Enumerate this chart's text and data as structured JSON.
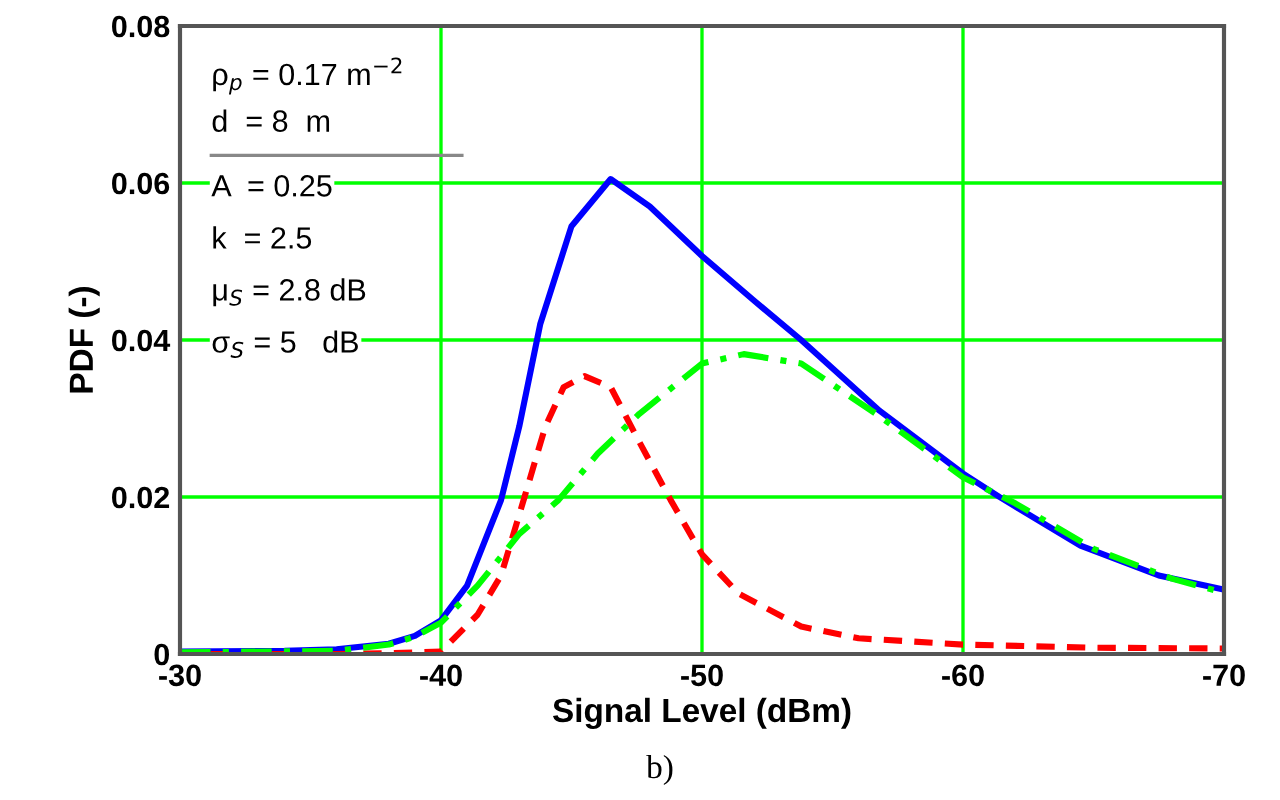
{
  "chart_data": {
    "type": "line",
    "xlabel": "Signal Level (dBm)",
    "ylabel": "PDF (-)",
    "xlim": [
      -30,
      -70
    ],
    "ylim": [
      0,
      0.08
    ],
    "xticks": [
      {
        "value": -30,
        "label": "-30"
      },
      {
        "value": -40,
        "label": "-40"
      },
      {
        "value": -50,
        "label": "-50"
      },
      {
        "value": -60,
        "label": "-60"
      },
      {
        "value": -70,
        "label": "-70"
      }
    ],
    "yticks": [
      0,
      0.02,
      0.04,
      0.06,
      0.08
    ],
    "grid": true,
    "annotations": [
      "ρ$_{p}$ = 0.17 m$^{−2}$",
      "d  = 8  m",
      "A  = 0.25",
      "k  = 2.5",
      "μ$_{S}$ = 2.8 dB",
      "σ$_{S}$ = 5   dB",
      "b)"
    ],
    "series": [
      {
        "color": "#0000ff",
        "line_style": "solid",
        "x": [
          -30,
          -34,
          -36,
          -38,
          -39,
          -40,
          -41,
          -42.3,
          -43,
          -43.8,
          -45,
          -46.5,
          -48,
          -50,
          -52,
          -53.8,
          -56.8,
          -60,
          -61.4,
          -64.5,
          -67.5,
          -70
        ],
        "values": [
          0.0003,
          0.0004,
          0.0006,
          0.0013,
          0.0023,
          0.0043,
          0.0087,
          0.0196,
          0.029,
          0.042,
          0.0545,
          0.0605,
          0.057,
          0.0507,
          0.045,
          0.04,
          0.031,
          0.023,
          0.02,
          0.0138,
          0.01,
          0.0082
        ]
      },
      {
        "color": "#ff0000",
        "line_style": "dashed",
        "x": [
          -30,
          -36,
          -38,
          -39,
          -40,
          -41.4,
          -42.3,
          -43.2,
          -44,
          -44.7,
          -45.5,
          -46.5,
          -47.6,
          -48.8,
          -50,
          -51.4,
          -53.8,
          -56,
          -60,
          -65,
          -70
        ],
        "values": [
          0,
          0,
          0.0001,
          0.0002,
          0.0003,
          0.005,
          0.01,
          0.02,
          0.029,
          0.034,
          0.0354,
          0.034,
          0.027,
          0.0196,
          0.0127,
          0.0077,
          0.0035,
          0.002,
          0.0012,
          0.0008,
          0.0007
        ]
      },
      {
        "color": "#00ff00",
        "line_style": "dashdot",
        "x": [
          -30,
          -36,
          -38,
          -39,
          -40,
          -41.4,
          -43,
          -44.5,
          -46,
          -47.6,
          -50,
          -51.6,
          -53.8,
          -56.8,
          -60,
          -62,
          -65,
          -68,
          -70
        ],
        "values": [
          0.0002,
          0.0004,
          0.0012,
          0.0022,
          0.004,
          0.0087,
          0.0153,
          0.0196,
          0.0255,
          0.0306,
          0.037,
          0.0382,
          0.037,
          0.0303,
          0.0225,
          0.0192,
          0.0134,
          0.0096,
          0.0078
        ]
      }
    ]
  }
}
